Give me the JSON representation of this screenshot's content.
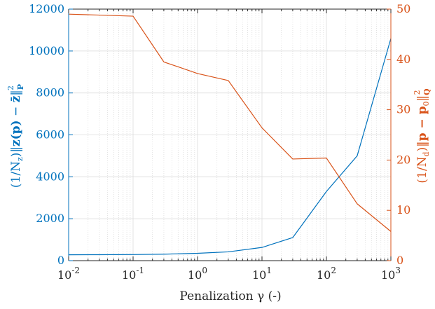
{
  "chart_data": {
    "type": "line",
    "xlabel": "Penalization γ (-)",
    "x_scale": "log",
    "xlim": [
      0.01,
      1000
    ],
    "x_ticks": [
      {
        "base": "10",
        "exp": "-2"
      },
      {
        "base": "10",
        "exp": "-1"
      },
      {
        "base": "10",
        "exp": "0"
      },
      {
        "base": "10",
        "exp": "1"
      },
      {
        "base": "10",
        "exp": "2"
      },
      {
        "base": "10",
        "exp": "3"
      }
    ],
    "ylabel_left": {
      "a": "(1/N",
      "a_sub": "z",
      "b": ")‖",
      "c": "z(p)",
      "d": " − ",
      "e": "z̄",
      "f": "‖",
      "g_sub": "P",
      "g_sup": "2"
    },
    "ylabel_right": {
      "a": "(1/N",
      "a_sub": "d",
      "b": ")‖",
      "c": "p − p",
      "c_sub": "0",
      "f": "‖",
      "g_sub": "Q",
      "g_sup": "2"
    },
    "ylim_left": [
      0,
      12000
    ],
    "ylim_right": [
      0,
      50
    ],
    "left_ticks": [
      "0",
      "2000",
      "4000",
      "6000",
      "8000",
      "10000",
      "12000"
    ],
    "right_ticks": [
      "0",
      "10",
      "20",
      "30",
      "40",
      "50"
    ],
    "grid": "on",
    "colors": {
      "left": "#0072BD",
      "right": "#D95319",
      "grid": "#dcdcdc"
    },
    "series": [
      {
        "axis": "left",
        "x": [
          0.01,
          0.03,
          0.1,
          0.3,
          1,
          3,
          10,
          30,
          100,
          300,
          1000
        ],
        "values": [
          280,
          285,
          290,
          310,
          350,
          420,
          630,
          1100,
          3300,
          5000,
          10600
        ]
      },
      {
        "axis": "right",
        "x": [
          0.01,
          0.1,
          0.3,
          1,
          3,
          10,
          30,
          100,
          300,
          1000
        ],
        "values": [
          49.0,
          48.6,
          39.5,
          37.2,
          35.8,
          26.4,
          20.2,
          20.4,
          11.3,
          5.8
        ]
      }
    ]
  }
}
